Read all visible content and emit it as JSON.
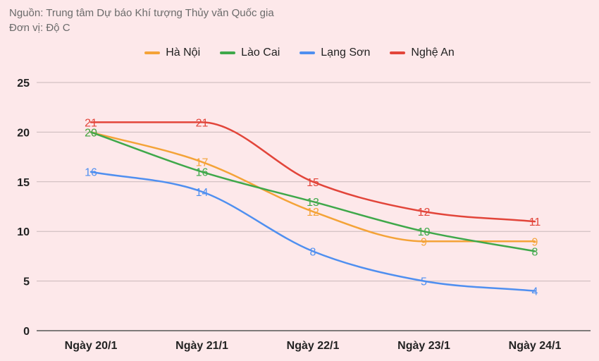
{
  "header": {
    "source": "Nguồn: Trung tâm Dự báo Khí tượng Thủy văn Quốc gia",
    "unit": "Đơn vị: Độ C"
  },
  "legend": {
    "items": [
      {
        "label": "Hà Nội",
        "color": "#f4a338"
      },
      {
        "label": "Lào Cai",
        "color": "#3fa84a"
      },
      {
        "label": "Lạng Sơn",
        "color": "#4f8ff0"
      },
      {
        "label": "Nghệ An",
        "color": "#e2453a"
      }
    ]
  },
  "chart_data": {
    "type": "line",
    "categories": [
      "Ngày 20/1",
      "Ngày 21/1",
      "Ngày 22/1",
      "Ngày 23/1",
      "Ngày 24/1"
    ],
    "series": [
      {
        "name": "Hà Nội",
        "color": "#f4a338",
        "values": [
          20,
          17,
          12,
          9,
          9
        ]
      },
      {
        "name": "Lào Cai",
        "color": "#3fa84a",
        "values": [
          20,
          16,
          13,
          10,
          8
        ]
      },
      {
        "name": "Lạng Sơn",
        "color": "#4f8ff0",
        "values": [
          16,
          14,
          8,
          5,
          4
        ]
      },
      {
        "name": "Nghệ An",
        "color": "#e2453a",
        "values": [
          21,
          21,
          15,
          12,
          11
        ]
      }
    ],
    "yticks": [
      0,
      5,
      10,
      15,
      20,
      25
    ],
    "ylim": [
      0,
      25
    ],
    "grid": true,
    "legend_position": "top",
    "smooth": true
  }
}
